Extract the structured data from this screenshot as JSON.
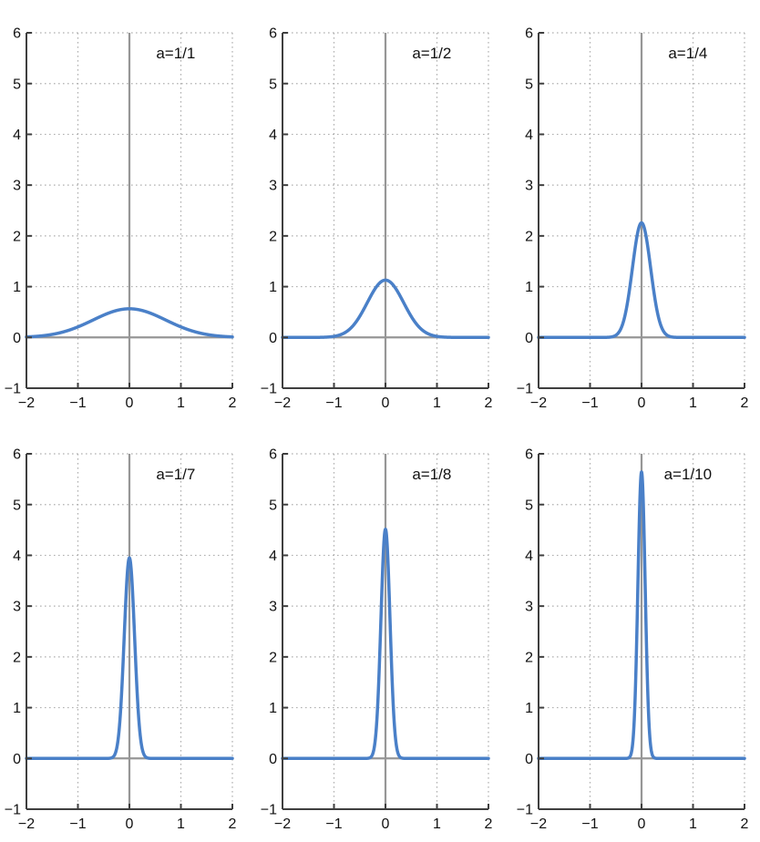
{
  "page": {
    "background": "#ffffff",
    "description": "Figure with six subplots of narrowing Gaussian pulses (nascent delta functions)"
  },
  "chart_data": {
    "type": "line",
    "layout": {
      "rows": 2,
      "cols": 3,
      "grid": "dotted gridlines at integer values",
      "legend": "none"
    },
    "function": "y = exp(-(x/a)^2) / (a*sqrt(pi))",
    "x_range": [
      -2,
      2
    ],
    "y_range": [
      -1,
      6
    ],
    "x_ticks": [
      -2,
      -1,
      0,
      1,
      2
    ],
    "y_ticks": [
      -1,
      0,
      1,
      2,
      3,
      4,
      5,
      6
    ],
    "x_tick_labels": [
      "−2",
      "−1",
      "0",
      "1",
      "2"
    ],
    "y_tick_labels": [
      "−1",
      "0",
      "1",
      "2",
      "3",
      "4",
      "5",
      "6"
    ],
    "origin_lines": {
      "vertical_at_x": 0,
      "horizontal_at_y": 0
    },
    "annotation_position": {
      "x": 0.9,
      "y": 5.5
    },
    "plots": [
      {
        "label": "a=1/1",
        "a": 1.0,
        "peak_y": 0.564,
        "sample_points": [
          [
            -2,
            0.01
          ],
          [
            -1,
            0.208
          ],
          [
            -0.5,
            0.439
          ],
          [
            0,
            0.564
          ],
          [
            0.5,
            0.439
          ],
          [
            1,
            0.208
          ],
          [
            2,
            0.01
          ]
        ]
      },
      {
        "label": "a=1/2",
        "a": 0.5,
        "peak_y": 1.128,
        "sample_points": [
          [
            -2,
            0.0
          ],
          [
            -1,
            0.021
          ],
          [
            -0.5,
            0.415
          ],
          [
            -0.25,
            0.879
          ],
          [
            0,
            1.128
          ],
          [
            0.25,
            0.879
          ],
          [
            0.5,
            0.415
          ],
          [
            1,
            0.021
          ],
          [
            2,
            0.0
          ]
        ]
      },
      {
        "label": "a=1/4",
        "a": 0.25,
        "peak_y": 2.257,
        "sample_points": [
          [
            -2,
            0.0
          ],
          [
            -0.5,
            0.041
          ],
          [
            -0.25,
            0.83
          ],
          [
            -0.125,
            1.758
          ],
          [
            0,
            2.257
          ],
          [
            0.125,
            1.758
          ],
          [
            0.25,
            0.83
          ],
          [
            0.5,
            0.041
          ],
          [
            2,
            0.0
          ]
        ]
      },
      {
        "label": "a=1/7",
        "a": 0.142857,
        "peak_y": 3.949,
        "sample_points": [
          [
            -2,
            0.0
          ],
          [
            -0.286,
            0.072
          ],
          [
            -0.143,
            1.453
          ],
          [
            -0.071,
            3.076
          ],
          [
            0,
            3.949
          ],
          [
            0.071,
            3.076
          ],
          [
            0.143,
            1.453
          ],
          [
            0.286,
            0.072
          ],
          [
            2,
            0.0
          ]
        ]
      },
      {
        "label": "a=1/8",
        "a": 0.125,
        "peak_y": 4.514,
        "sample_points": [
          [
            -2,
            0.0
          ],
          [
            -0.25,
            0.083
          ],
          [
            -0.125,
            1.661
          ],
          [
            -0.0625,
            3.515
          ],
          [
            0,
            4.514
          ],
          [
            0.0625,
            3.515
          ],
          [
            0.125,
            1.661
          ],
          [
            0.25,
            0.083
          ],
          [
            2,
            0.0
          ]
        ]
      },
      {
        "label": "a=1/10",
        "a": 0.1,
        "peak_y": 5.642,
        "sample_points": [
          [
            -2,
            0.0
          ],
          [
            -0.2,
            0.103
          ],
          [
            -0.1,
            2.076
          ],
          [
            -0.05,
            4.394
          ],
          [
            0,
            5.642
          ],
          [
            0.05,
            4.394
          ],
          [
            0.1,
            2.076
          ],
          [
            0.2,
            0.103
          ],
          [
            2,
            0.0
          ]
        ]
      }
    ],
    "colors": {
      "curve": "#4a80c8",
      "origin_lines": "#969696",
      "axis": "#3f3f3f",
      "grid_dots": "#b0b0b0",
      "tick_label": "#111111",
      "annotation": "#111111"
    },
    "style": {
      "curve_width": 3.5,
      "origin_line_width": 2.2,
      "axis_width": 2,
      "tick_length": 6,
      "tick_font_size": 16,
      "annotation_font_size": 17
    }
  }
}
